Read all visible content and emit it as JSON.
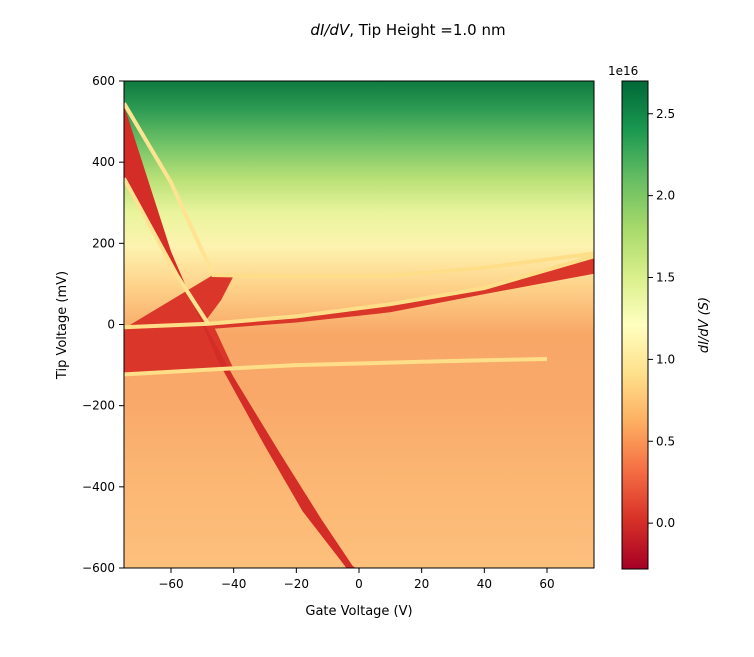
{
  "chart_data": {
    "type": "heatmap",
    "title": {
      "pre": "dI/dV",
      "post": ", Tip Height =1.0 nm"
    },
    "xlabel": "Gate Voltage (V)",
    "ylabel": "Tip Voltage (mV)",
    "xlim": [
      -75,
      75
    ],
    "ylim": [
      -600,
      600
    ],
    "xticks": [
      -60,
      -40,
      -20,
      0,
      20,
      40,
      60
    ],
    "xtick_labels": [
      "−60",
      "−40",
      "−20",
      "0",
      "20",
      "40",
      "60"
    ],
    "yticks": [
      600,
      400,
      200,
      0,
      -200,
      -400,
      -600
    ],
    "ytick_labels": [
      "600",
      "400",
      "200",
      "0",
      "−200",
      "−400",
      "−600"
    ],
    "colormap": "RdYlGn",
    "colorbar": {
      "label": "dI/dV (S)",
      "offset_text": "1e16",
      "range": [
        -0.28,
        2.7
      ],
      "ticks": [
        0.0,
        0.5,
        1.0,
        1.5,
        2.0,
        2.5
      ],
      "tick_labels": [
        "0.0",
        "0.5",
        "1.0",
        "1.5",
        "2.0",
        "2.5"
      ],
      "scale": "linear"
    },
    "features": [
      {
        "name": "band",
        "value": 0.05,
        "polygon": [
          [
            -75,
            -120
          ],
          [
            -75,
            -10
          ],
          [
            -48,
            0
          ],
          [
            -20,
            20
          ],
          [
            10,
            50
          ],
          [
            40,
            90
          ],
          [
            75,
            165
          ],
          [
            75,
            125
          ],
          [
            40,
            75
          ],
          [
            10,
            30
          ],
          [
            -20,
            5
          ],
          [
            -46,
            -10
          ],
          [
            -40,
            -110
          ],
          [
            -60,
            -117
          ]
        ]
      },
      {
        "name": "band",
        "value": 0.05,
        "polygon": [
          [
            -75,
            -20
          ],
          [
            -75,
            -10
          ],
          [
            -47,
            120
          ],
          [
            -40,
            120
          ],
          [
            -44,
            60
          ],
          [
            -50,
            -2
          ]
        ]
      },
      {
        "name": "line",
        "value": 0.0,
        "polygon": [
          [
            -75,
            540
          ],
          [
            -75,
            360
          ],
          [
            -55,
            80
          ],
          [
            -40,
            -130
          ],
          [
            -25,
            -320
          ],
          [
            -12,
            -480
          ],
          [
            -2,
            -595
          ],
          [
            -1,
            -600
          ],
          [
            -4,
            -600
          ],
          [
            -18,
            -460
          ],
          [
            -30,
            -300
          ],
          [
            -45,
            -90
          ],
          [
            -60,
            180
          ]
        ]
      },
      {
        "name": "edge",
        "value": 0.9,
        "polyline": [
          [
            -75,
            -123
          ],
          [
            -40,
            -108
          ],
          [
            -20,
            -100
          ],
          [
            0,
            -96
          ],
          [
            20,
            -92
          ],
          [
            40,
            -88
          ],
          [
            60,
            -85
          ]
        ]
      },
      {
        "name": "edge",
        "value": 0.9,
        "polyline": [
          [
            -75,
            -7
          ],
          [
            -48,
            2
          ],
          [
            -20,
            20
          ],
          [
            10,
            50
          ],
          [
            40,
            90
          ],
          [
            75,
            168
          ]
        ]
      },
      {
        "name": "edge",
        "value": 0.9,
        "polyline": [
          [
            -47,
            122
          ],
          [
            -20,
            118
          ],
          [
            10,
            120
          ],
          [
            40,
            140
          ],
          [
            75,
            175
          ]
        ]
      },
      {
        "name": "edge",
        "value": 0.95,
        "polyline": [
          [
            -75,
            545
          ],
          [
            -60,
            350
          ],
          [
            -47,
            130
          ]
        ]
      },
      {
        "name": "edge",
        "value": 0.95,
        "polyline": [
          [
            -75,
            360
          ],
          [
            -58,
            120
          ],
          [
            -48,
            0
          ]
        ]
      }
    ]
  }
}
